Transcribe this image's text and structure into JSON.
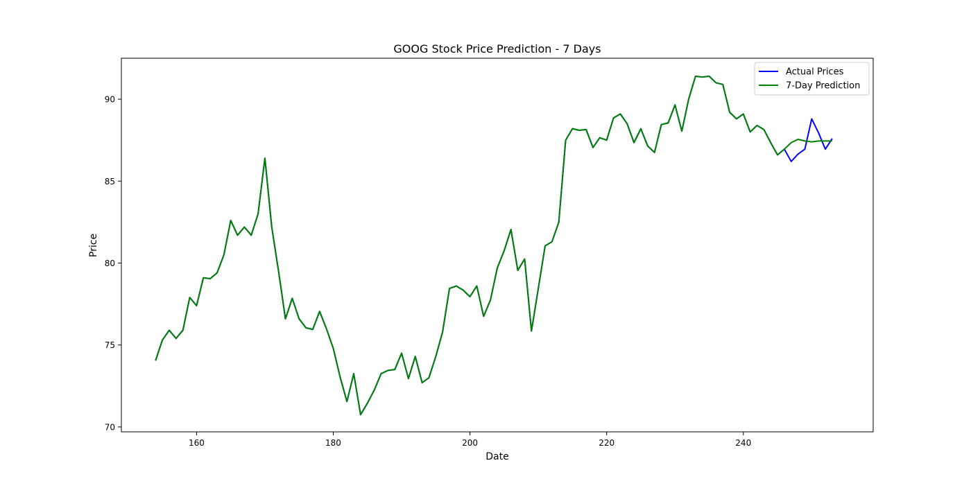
{
  "chart_data": {
    "type": "line",
    "title": "GOOG Stock Price Prediction - 7 Days",
    "xlabel": "Date",
    "ylabel": "Price",
    "xlim": [
      149,
      259
    ],
    "ylim": [
      69.7,
      92.5
    ],
    "xticks": [
      160,
      180,
      200,
      220,
      240
    ],
    "yticks": [
      70,
      75,
      80,
      85,
      90
    ],
    "grid": false,
    "legend_position": "top-right",
    "series": [
      {
        "name": "Actual Prices",
        "color": "#0000ff",
        "x": [
          154,
          155,
          156,
          157,
          158,
          159,
          160,
          161,
          162,
          163,
          164,
          165,
          166,
          167,
          168,
          169,
          170,
          171,
          172,
          173,
          174,
          175,
          176,
          177,
          178,
          179,
          180,
          181,
          182,
          183,
          184,
          185,
          186,
          187,
          188,
          189,
          190,
          191,
          192,
          193,
          194,
          195,
          196,
          197,
          198,
          199,
          200,
          201,
          202,
          203,
          204,
          205,
          206,
          207,
          208,
          209,
          210,
          211,
          212,
          213,
          214,
          215,
          216,
          217,
          218,
          219,
          220,
          221,
          222,
          223,
          224,
          225,
          226,
          227,
          228,
          229,
          230,
          231,
          232,
          233,
          234,
          235,
          236,
          237,
          238,
          239,
          240,
          241,
          242,
          243,
          244,
          245,
          246,
          247,
          248,
          249,
          250,
          251,
          252,
          253
        ],
        "values": [
          74.05,
          75.3,
          75.9,
          75.4,
          75.9,
          77.9,
          77.4,
          79.1,
          79.05,
          79.4,
          80.5,
          82.6,
          81.7,
          82.2,
          81.7,
          83.0,
          86.4,
          82.2,
          79.5,
          76.6,
          77.85,
          76.6,
          76.05,
          75.95,
          77.05,
          76.0,
          74.8,
          73.05,
          71.55,
          73.25,
          70.75,
          71.45,
          72.25,
          73.25,
          73.45,
          73.5,
          74.5,
          72.95,
          74.3,
          72.7,
          73.0,
          74.3,
          75.8,
          78.45,
          78.6,
          78.35,
          77.95,
          78.6,
          76.75,
          77.75,
          79.7,
          80.75,
          82.05,
          79.55,
          80.25,
          75.85,
          78.45,
          81.05,
          81.3,
          82.5,
          87.5,
          88.2,
          88.1,
          88.15,
          87.05,
          87.65,
          87.5,
          88.85,
          89.1,
          88.5,
          87.35,
          88.2,
          87.15,
          86.75,
          88.45,
          88.55,
          89.65,
          88.05,
          90.0,
          91.4,
          91.35,
          91.4,
          91.0,
          90.9,
          89.2,
          88.8,
          89.1,
          88.0,
          88.4,
          88.15,
          87.35,
          86.6,
          86.95,
          86.2,
          86.65,
          86.95,
          88.8,
          87.95,
          86.95,
          87.6
        ]
      },
      {
        "name": "7-Day Prediction",
        "color": "#008000",
        "x": [
          154,
          155,
          156,
          157,
          158,
          159,
          160,
          161,
          162,
          163,
          164,
          165,
          166,
          167,
          168,
          169,
          170,
          171,
          172,
          173,
          174,
          175,
          176,
          177,
          178,
          179,
          180,
          181,
          182,
          183,
          184,
          185,
          186,
          187,
          188,
          189,
          190,
          191,
          192,
          193,
          194,
          195,
          196,
          197,
          198,
          199,
          200,
          201,
          202,
          203,
          204,
          205,
          206,
          207,
          208,
          209,
          210,
          211,
          212,
          213,
          214,
          215,
          216,
          217,
          218,
          219,
          220,
          221,
          222,
          223,
          224,
          225,
          226,
          227,
          228,
          229,
          230,
          231,
          232,
          233,
          234,
          235,
          236,
          237,
          238,
          239,
          240,
          241,
          242,
          243,
          244,
          245,
          246,
          247,
          248,
          249,
          250,
          251,
          252,
          253
        ],
        "values": [
          74.05,
          75.3,
          75.9,
          75.4,
          75.9,
          77.9,
          77.4,
          79.1,
          79.05,
          79.4,
          80.5,
          82.6,
          81.7,
          82.2,
          81.7,
          83.0,
          86.4,
          82.2,
          79.5,
          76.6,
          77.85,
          76.6,
          76.05,
          75.95,
          77.05,
          76.0,
          74.8,
          73.05,
          71.55,
          73.25,
          70.75,
          71.45,
          72.25,
          73.25,
          73.45,
          73.5,
          74.5,
          72.95,
          74.3,
          72.7,
          73.0,
          74.3,
          75.8,
          78.45,
          78.6,
          78.35,
          77.95,
          78.6,
          76.75,
          77.75,
          79.7,
          80.75,
          82.05,
          79.55,
          80.25,
          75.85,
          78.45,
          81.05,
          81.3,
          82.5,
          87.5,
          88.2,
          88.1,
          88.15,
          87.05,
          87.65,
          87.5,
          88.85,
          89.1,
          88.5,
          87.35,
          88.2,
          87.15,
          86.75,
          88.45,
          88.55,
          89.65,
          88.05,
          90.0,
          91.4,
          91.35,
          91.4,
          91.0,
          90.9,
          89.2,
          88.8,
          89.1,
          88.0,
          88.4,
          88.15,
          87.35,
          86.6,
          86.95,
          87.35,
          87.55,
          87.45,
          87.4,
          87.45,
          87.45,
          87.45
        ]
      }
    ]
  }
}
